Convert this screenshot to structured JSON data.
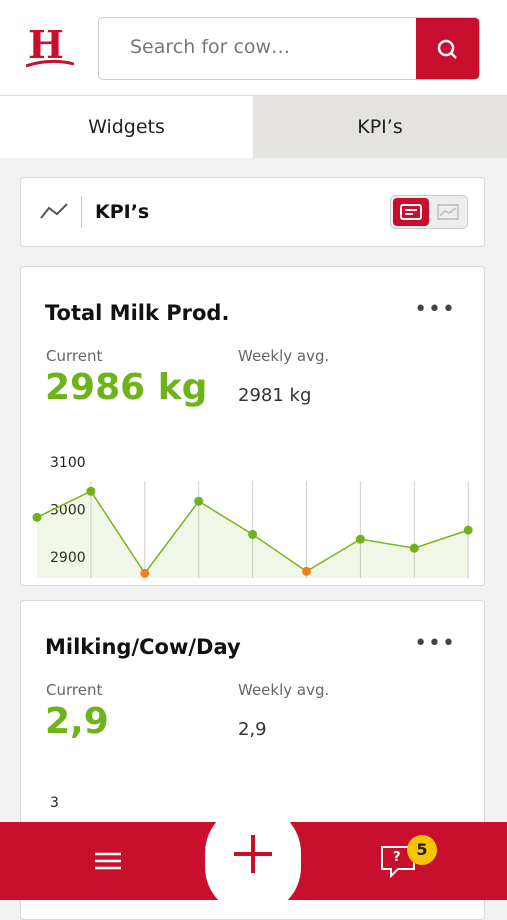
{
  "header": {
    "logo": "H",
    "search_placeholder": "Search for cow…"
  },
  "tabs": [
    "Widgets",
    "KPI’s"
  ],
  "section": {
    "title": "KPI’s"
  },
  "cards": [
    {
      "title": "Total Milk Prod.",
      "current_label": "Current",
      "current_value": "2986 kg",
      "weekly_label": "Weekly avg.",
      "weekly_value": "2981 kg",
      "chart_data": {
        "type": "line",
        "categories": [
          null,
          null,
          null,
          null,
          null,
          null,
          null,
          null,
          null
        ],
        "values": [
          2998,
          3053,
          2880,
          3032,
          2962,
          2884,
          2952,
          2933,
          2971
        ],
        "colors": [
          "#6fb31b",
          "#6fb31b",
          "#f47d20",
          "#6fb31b",
          "#6fb31b",
          "#f47d20",
          "#6fb31b",
          "#6fb31b",
          "#6fb31b"
        ],
        "color": "#7ab51d",
        "ylim": [
          2870,
          3120
        ],
        "yticks": [
          2900,
          3000,
          3100
        ]
      }
    },
    {
      "title": "Milking/Cow/Day",
      "current_label": "Current",
      "current_value": "2,9",
      "weekly_label": "Weekly avg.",
      "weekly_value": "2,9",
      "chart_data": {
        "type": "line",
        "yticks": [
          3
        ]
      }
    }
  ],
  "footer": {
    "help": "?",
    "badge": "5"
  }
}
